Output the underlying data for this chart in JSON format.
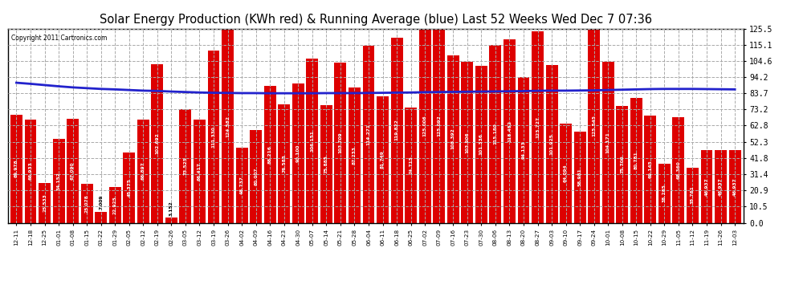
{
  "title": "Solar Energy Production (KWh red) & Running Average (blue) Last 52 Weeks Wed Dec 7 07:36",
  "copyright": "Copyright 2011 Cartronics.com",
  "bar_color": "#dd0000",
  "avg_line_color": "#2222cc",
  "background_color": "#ffffff",
  "plot_bg_color": "#ffffff",
  "grid_color": "#aaaaaa",
  "categories": [
    "12-11",
    "12-18",
    "12-25",
    "01-01",
    "01-08",
    "01-15",
    "01-22",
    "01-29",
    "02-05",
    "02-12",
    "02-19",
    "02-26",
    "03-05",
    "03-12",
    "03-19",
    "03-26",
    "04-02",
    "04-09",
    "04-16",
    "04-23",
    "04-30",
    "05-07",
    "05-14",
    "05-21",
    "05-28",
    "06-04",
    "06-11",
    "06-18",
    "06-25",
    "07-02",
    "07-09",
    "07-16",
    "07-23",
    "07-30",
    "08-06",
    "08-13",
    "08-20",
    "08-27",
    "09-03",
    "09-10",
    "09-17",
    "09-24",
    "10-01",
    "10-08",
    "10-15",
    "10-22",
    "10-29",
    "11-05",
    "11-12",
    "11-19",
    "11-26",
    "12-03"
  ],
  "values": [
    69.978,
    66.933,
    25.533,
    54.152,
    67.09,
    25.078,
    7.009,
    22.925,
    45.375,
    66.897,
    102.692,
    3.152,
    73.525,
    66.417,
    111.33,
    124.582,
    48.737,
    60.007,
    88.216,
    76.583,
    90.1,
    106.151,
    75.885,
    103.709,
    87.233,
    114.271,
    81.749,
    119.822,
    74.715,
    125.006,
    125.092,
    108.392,
    103.906,
    101.336,
    115.18,
    118.452,
    94.133,
    123.727,
    101.925,
    64.094,
    58.981,
    125.545,
    104.171,
    75.7,
    80.781,
    69.145,
    38.285,
    68.36,
    35.761,
    46.937,
    46.937,
    46.937
  ],
  "running_avg": [
    90.5,
    89.8,
    89.0,
    88.2,
    87.5,
    87.0,
    86.5,
    86.2,
    85.8,
    85.4,
    85.2,
    84.8,
    84.5,
    84.2,
    84.0,
    83.9,
    83.8,
    83.8,
    83.7,
    83.7,
    83.7,
    83.7,
    83.8,
    83.8,
    83.8,
    83.9,
    84.0,
    84.1,
    84.2,
    84.4,
    84.5,
    84.6,
    84.7,
    84.8,
    84.9,
    85.0,
    85.1,
    85.3,
    85.4,
    85.4,
    85.5,
    85.6,
    85.8,
    86.0,
    86.2,
    86.4,
    86.5,
    86.5,
    86.5,
    86.4,
    86.3,
    86.2
  ],
  "ylim": [
    0.0,
    125.5
  ],
  "yticks": [
    0.0,
    10.5,
    20.9,
    31.4,
    41.8,
    52.3,
    62.8,
    73.2,
    83.7,
    94.2,
    104.6,
    115.1,
    125.5
  ],
  "title_fontsize": 10.5,
  "label_fontsize": 5.2,
  "value_fontsize": 4.2
}
